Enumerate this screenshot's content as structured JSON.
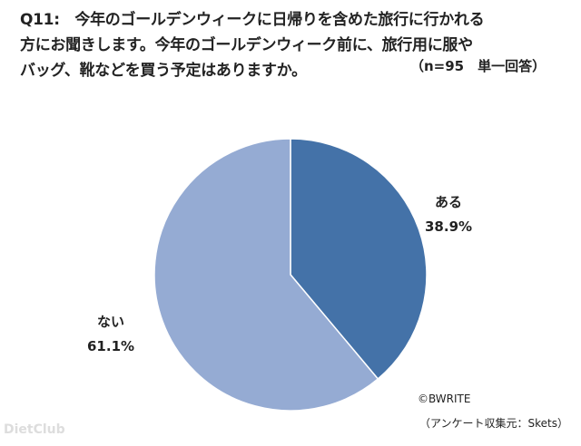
{
  "chart_data": {
    "type": "pie",
    "title_lines": [
      "Q11:　今年のゴールデンウィークに日帰りを含めた旅行に行かれる",
      "方にお聞きします。今年のゴールデンウィーク前に、旅行用に服や",
      "バッグ、靴などを買う予定はありますか。"
    ],
    "note": "（n=95　単一回答）",
    "slices": [
      {
        "label": "ある",
        "value": 38.9,
        "value_label": "38.9%",
        "color": "#4472a8"
      },
      {
        "label": "ない",
        "value": 61.1,
        "value_label": "61.1%",
        "color": "#95abd3"
      }
    ],
    "start_angle": "12 o'clock",
    "direction": "clockwise"
  },
  "credits": {
    "copyright": "©BWRITE",
    "source": "（アンケート収集元：Skets）"
  },
  "watermark": "DietClub"
}
